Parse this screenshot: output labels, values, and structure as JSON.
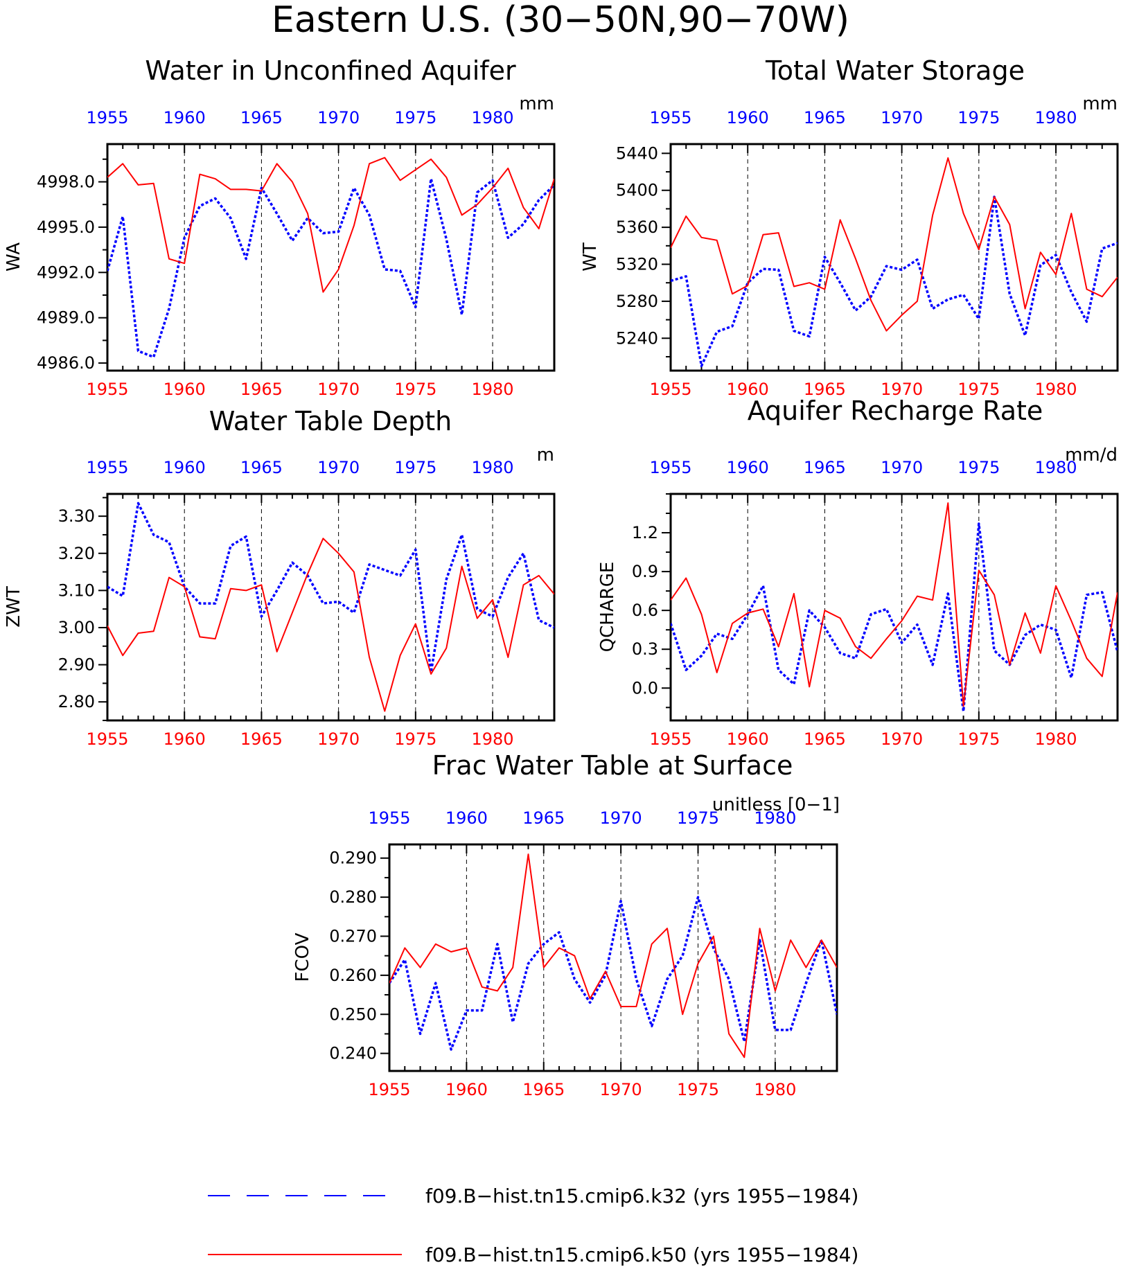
{
  "title": "Eastern U.S. (30−50N,90−70W)",
  "colors": {
    "red": "#ff0000",
    "blue": "#0000ff"
  },
  "legend": [
    {
      "series": "blue",
      "style": "dashed",
      "label": "f09.B−hist.tn15.cmip6.k32 (yrs 1955−1984)"
    },
    {
      "series": "red",
      "style": "solid",
      "label": "f09.B−hist.tn15.cmip6.k50 (yrs 1955−1984)"
    }
  ],
  "chart_data": [
    {
      "type": "line",
      "title": "Water in Unconfined Aquifer",
      "ylabel": "WA",
      "units": "mm",
      "xlim": [
        1955,
        1984
      ],
      "ylim": [
        4985.5,
        5000.5
      ],
      "yticks": [
        4986.0,
        4989.0,
        4992.0,
        4995.0,
        4998.0
      ],
      "ytick_labels": [
        "4986.0",
        "4989.0",
        "4992.0",
        "4995.0",
        "4998.0"
      ],
      "xticks": [
        1955,
        1960,
        1965,
        1970,
        1975,
        1980
      ],
      "x": [
        1955,
        1956,
        1957,
        1958,
        1959,
        1960,
        1961,
        1962,
        1963,
        1964,
        1965,
        1966,
        1967,
        1968,
        1969,
        1970,
        1971,
        1972,
        1973,
        1974,
        1975,
        1976,
        1977,
        1978,
        1979,
        1980,
        1981,
        1982,
        1983,
        1984
      ],
      "series": [
        {
          "color": "blue",
          "values": [
            4992.1,
            4995.7,
            4986.8,
            4986.4,
            4989.6,
            4994.3,
            4996.4,
            4996.9,
            4995.6,
            4992.9,
            4997.6,
            4995.9,
            4994.1,
            4995.6,
            4994.6,
            4994.7,
            4997.6,
            4995.8,
            4992.2,
            4992.1,
            4989.7,
            4998.2,
            4994.2,
            4989.2,
            4997.3,
            4998.1,
            4994.3,
            4995.2,
            4996.8,
            4997.8
          ]
        },
        {
          "color": "red",
          "values": [
            4998.3,
            4999.2,
            4997.8,
            4997.9,
            4992.9,
            4992.6,
            4998.5,
            4998.2,
            4997.5,
            4997.5,
            4997.4,
            4999.2,
            4998.0,
            4995.9,
            4990.7,
            4992.2,
            4995.1,
            4999.2,
            4999.6,
            4998.1,
            4998.8,
            4999.5,
            4998.3,
            4995.8,
            4996.5,
            4997.6,
            4998.9,
            4996.3,
            4994.9,
            4998.2
          ]
        }
      ]
    },
    {
      "type": "line",
      "title": "Total Water Storage",
      "ylabel": "WT",
      "units": "mm",
      "xlim": [
        1955,
        1984
      ],
      "ylim": [
        5205,
        5450
      ],
      "yticks": [
        5240,
        5280,
        5320,
        5360,
        5400,
        5440
      ],
      "ytick_labels": [
        "5240",
        "5280",
        "5320",
        "5360",
        "5400",
        "5440"
      ],
      "xticks": [
        1955,
        1960,
        1965,
        1970,
        1975,
        1980
      ],
      "x": [
        1955,
        1956,
        1957,
        1958,
        1959,
        1960,
        1961,
        1962,
        1963,
        1964,
        1965,
        1966,
        1967,
        1968,
        1969,
        1970,
        1971,
        1972,
        1973,
        1974,
        1975,
        1976,
        1977,
        1978,
        1979,
        1980,
        1981,
        1982,
        1983,
        1984
      ],
      "series": [
        {
          "color": "blue",
          "values": [
            5302,
            5307,
            5210,
            5247,
            5253,
            5300,
            5315,
            5314,
            5248,
            5242,
            5328,
            5300,
            5270,
            5285,
            5318,
            5314,
            5325,
            5272,
            5282,
            5287,
            5261,
            5393,
            5288,
            5243,
            5319,
            5330,
            5290,
            5258,
            5337,
            5343
          ]
        },
        {
          "color": "red",
          "values": [
            5338,
            5372,
            5349,
            5346,
            5288,
            5297,
            5352,
            5354,
            5296,
            5300,
            5293,
            5368,
            5326,
            5281,
            5248,
            5265,
            5280,
            5373,
            5435,
            5375,
            5336,
            5393,
            5363,
            5272,
            5333,
            5309,
            5375,
            5293,
            5285,
            5306
          ]
        }
      ]
    },
    {
      "type": "line",
      "title": "Water Table Depth",
      "ylabel": "ZWT",
      "units": "m",
      "xlim": [
        1955,
        1984
      ],
      "ylim": [
        2.75,
        3.36
      ],
      "yticks": [
        2.8,
        2.9,
        3.0,
        3.1,
        3.2,
        3.3
      ],
      "ytick_labels": [
        "2.80",
        "2.90",
        "3.00",
        "3.10",
        "3.20",
        "3.30"
      ],
      "xticks": [
        1955,
        1960,
        1965,
        1970,
        1975,
        1980
      ],
      "x": [
        1955,
        1956,
        1957,
        1958,
        1959,
        1960,
        1961,
        1962,
        1963,
        1964,
        1965,
        1966,
        1967,
        1968,
        1969,
        1970,
        1971,
        1972,
        1973,
        1974,
        1975,
        1976,
        1977,
        1978,
        1979,
        1980,
        1981,
        1982,
        1983,
        1984
      ],
      "series": [
        {
          "color": "blue",
          "values": [
            3.11,
            3.085,
            3.335,
            3.25,
            3.23,
            3.11,
            3.065,
            3.065,
            3.22,
            3.245,
            3.03,
            3.1,
            3.175,
            3.14,
            3.065,
            3.07,
            3.04,
            3.17,
            3.155,
            3.14,
            3.21,
            2.88,
            3.13,
            3.25,
            3.05,
            3.03,
            3.135,
            3.2,
            3.02,
            3.0
          ]
        },
        {
          "color": "red",
          "values": [
            3.005,
            2.925,
            2.985,
            2.99,
            3.135,
            3.11,
            2.975,
            2.97,
            3.105,
            3.1,
            3.115,
            2.935,
            3.04,
            3.145,
            3.24,
            3.2,
            3.15,
            2.92,
            2.775,
            2.925,
            3.01,
            2.875,
            2.945,
            3.165,
            3.025,
            3.075,
            2.92,
            3.115,
            3.14,
            3.09
          ]
        }
      ]
    },
    {
      "type": "line",
      "title": "Aquifer Recharge Rate",
      "ylabel": "QCHARGE",
      "units": "mm/d",
      "xlim": [
        1955,
        1984
      ],
      "ylim": [
        -0.25,
        1.5
      ],
      "yticks": [
        0.0,
        0.3,
        0.6,
        0.9,
        1.2
      ],
      "ytick_labels": [
        "0.0",
        "0.3",
        "0.6",
        "0.9",
        "1.2"
      ],
      "xticks": [
        1955,
        1960,
        1965,
        1970,
        1975,
        1980
      ],
      "x": [
        1955,
        1956,
        1957,
        1958,
        1959,
        1960,
        1961,
        1962,
        1963,
        1964,
        1965,
        1966,
        1967,
        1968,
        1969,
        1970,
        1971,
        1972,
        1973,
        1974,
        1975,
        1976,
        1977,
        1978,
        1979,
        1980,
        1981,
        1982,
        1983,
        1984
      ],
      "series": [
        {
          "color": "blue",
          "values": [
            0.5,
            0.14,
            0.25,
            0.42,
            0.38,
            0.57,
            0.79,
            0.14,
            0.03,
            0.6,
            0.47,
            0.27,
            0.23,
            0.57,
            0.61,
            0.35,
            0.49,
            0.18,
            0.73,
            -0.18,
            1.27,
            0.29,
            0.18,
            0.41,
            0.49,
            0.45,
            0.08,
            0.72,
            0.74,
            0.28
          ]
        },
        {
          "color": "red",
          "values": [
            0.68,
            0.85,
            0.57,
            0.12,
            0.5,
            0.58,
            0.61,
            0.32,
            0.73,
            0.01,
            0.6,
            0.54,
            0.32,
            0.23,
            0.38,
            0.52,
            0.71,
            0.68,
            1.43,
            -0.14,
            0.91,
            0.72,
            0.18,
            0.58,
            0.27,
            0.79,
            0.52,
            0.23,
            0.09,
            0.74
          ]
        }
      ]
    },
    {
      "type": "line",
      "title": "Frac Water Table at Surface",
      "ylabel": "FCOV",
      "units": "unitless [0−1]",
      "xlim": [
        1955,
        1984
      ],
      "ylim": [
        0.2355,
        0.2935
      ],
      "yticks": [
        0.24,
        0.25,
        0.26,
        0.27,
        0.28,
        0.29
      ],
      "ytick_labels": [
        "0.240",
        "0.250",
        "0.260",
        "0.270",
        "0.280",
        "0.290"
      ],
      "xticks": [
        1955,
        1960,
        1965,
        1970,
        1975,
        1980
      ],
      "x": [
        1955,
        1956,
        1957,
        1958,
        1959,
        1960,
        1961,
        1962,
        1963,
        1964,
        1965,
        1966,
        1967,
        1968,
        1969,
        1970,
        1971,
        1972,
        1973,
        1974,
        1975,
        1976,
        1977,
        1978,
        1979,
        1980,
        1981,
        1982,
        1983,
        1984
      ],
      "series": [
        {
          "color": "blue",
          "values": [
            0.258,
            0.264,
            0.245,
            0.258,
            0.241,
            0.251,
            0.251,
            0.268,
            0.248,
            0.263,
            0.268,
            0.271,
            0.259,
            0.253,
            0.26,
            0.279,
            0.259,
            0.247,
            0.259,
            0.265,
            0.28,
            0.267,
            0.259,
            0.243,
            0.269,
            0.246,
            0.246,
            0.258,
            0.269,
            0.25
          ]
        },
        {
          "color": "red",
          "values": [
            0.258,
            0.267,
            0.262,
            0.268,
            0.266,
            0.267,
            0.257,
            0.256,
            0.262,
            0.291,
            0.262,
            0.267,
            0.265,
            0.254,
            0.261,
            0.252,
            0.252,
            0.268,
            0.272,
            0.25,
            0.263,
            0.27,
            0.245,
            0.239,
            0.272,
            0.256,
            0.269,
            0.262,
            0.269,
            0.262
          ]
        }
      ]
    }
  ]
}
